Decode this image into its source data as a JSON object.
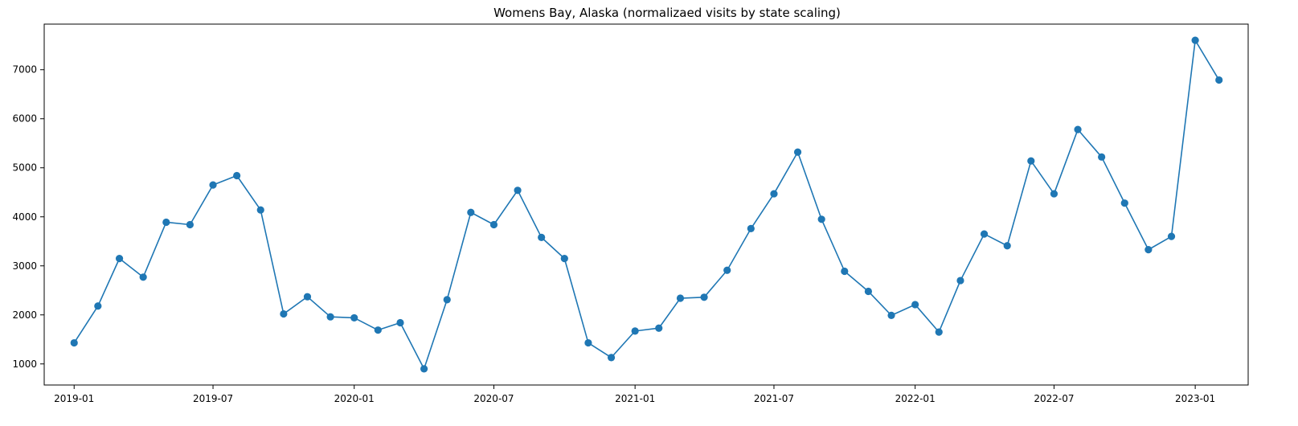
{
  "chart_data": {
    "type": "line",
    "title": "Womens Bay, Alaska (normalizaed visits by state scaling)",
    "xlabel": "",
    "ylabel": "",
    "x_ticks": [
      "2019-01",
      "2019-07",
      "2020-01",
      "2020-07",
      "2021-01",
      "2021-07",
      "2022-01",
      "2022-07",
      "2023-01"
    ],
    "y_ticks": [
      1000,
      2000,
      3000,
      4000,
      5000,
      6000,
      7000
    ],
    "xlim": [
      "2018-11-23",
      "2023-03-11"
    ],
    "ylim": [
      570,
      7930
    ],
    "grid": false,
    "legend": "none",
    "marker": "circle",
    "series_color": "#1f77b4",
    "series": [
      {
        "points": [
          [
            "2019-01-01",
            1430
          ],
          [
            "2019-02-01",
            2180
          ],
          [
            "2019-03-01",
            3150
          ],
          [
            "2019-04-01",
            2770
          ],
          [
            "2019-05-01",
            3890
          ],
          [
            "2019-06-01",
            3840
          ],
          [
            "2019-07-01",
            4650
          ],
          [
            "2019-08-01",
            4840
          ],
          [
            "2019-09-01",
            4140
          ],
          [
            "2019-10-01",
            2020
          ],
          [
            "2019-11-01",
            2370
          ],
          [
            "2019-12-01",
            1960
          ],
          [
            "2020-01-01",
            1940
          ],
          [
            "2020-02-01",
            1690
          ],
          [
            "2020-03-01",
            1840
          ],
          [
            "2020-04-01",
            900
          ],
          [
            "2020-05-01",
            2310
          ],
          [
            "2020-06-01",
            4090
          ],
          [
            "2020-07-01",
            3840
          ],
          [
            "2020-08-01",
            4540
          ],
          [
            "2020-09-01",
            3580
          ],
          [
            "2020-10-01",
            3150
          ],
          [
            "2020-11-01",
            1430
          ],
          [
            "2020-12-01",
            1130
          ],
          [
            "2021-01-01",
            1670
          ],
          [
            "2021-02-01",
            1730
          ],
          [
            "2021-03-01",
            2340
          ],
          [
            "2021-04-01",
            2360
          ],
          [
            "2021-05-01",
            2910
          ],
          [
            "2021-06-01",
            3760
          ],
          [
            "2021-07-01",
            4470
          ],
          [
            "2021-08-01",
            5320
          ],
          [
            "2021-09-01",
            3950
          ],
          [
            "2021-10-01",
            2890
          ],
          [
            "2021-11-01",
            2480
          ],
          [
            "2021-12-01",
            1990
          ],
          [
            "2022-01-01",
            2210
          ],
          [
            "2022-02-01",
            1650
          ],
          [
            "2022-03-01",
            2700
          ],
          [
            "2022-04-01",
            3650
          ],
          [
            "2022-05-01",
            3410
          ],
          [
            "2022-06-01",
            5140
          ],
          [
            "2022-07-01",
            4470
          ],
          [
            "2022-08-01",
            5780
          ],
          [
            "2022-09-01",
            5220
          ],
          [
            "2022-10-01",
            4280
          ],
          [
            "2022-11-01",
            3330
          ],
          [
            "2022-12-01",
            3600
          ],
          [
            "2023-01-01",
            7600
          ],
          [
            "2023-02-01",
            6790
          ]
        ]
      }
    ]
  }
}
